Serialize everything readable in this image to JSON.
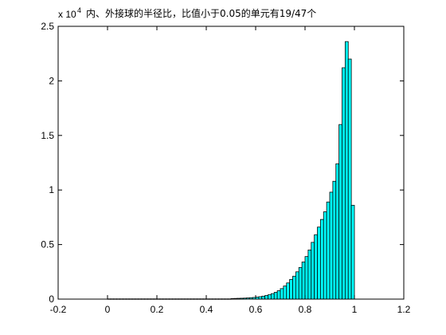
{
  "chart_data": {
    "type": "bar",
    "title": "内、外接球的半径比，比值小于0.05的单元有19/47个",
    "xlabel": "",
    "ylabel": "",
    "y_exponent_base": "x 10",
    "y_exponent_power": "4",
    "xlim": [
      -0.2,
      1.2
    ],
    "ylim": [
      0,
      2.5
    ],
    "xticks": [
      -0.2,
      0,
      0.2,
      0.4,
      0.6,
      0.8,
      1,
      1.2
    ],
    "xtick_labels": [
      "-0.2",
      "0",
      "0.2",
      "0.4",
      "0.6",
      "0.8",
      "1",
      "1.2"
    ],
    "yticks": [
      0,
      0.5,
      1,
      1.5,
      2,
      2.5
    ],
    "ytick_labels": [
      "0",
      "0.5",
      "1",
      "1.5",
      "2",
      "2.5"
    ],
    "grid": false,
    "bar_color": "#00ffff",
    "edge_color": "#000000",
    "bin_width": 0.0125,
    "bin_centers": [
      0.00625,
      0.01875,
      0.03125,
      0.04375,
      0.05625,
      0.06875,
      0.08125,
      0.09375,
      0.10625,
      0.11875,
      0.13125,
      0.14375,
      0.15625,
      0.16875,
      0.18125,
      0.19375,
      0.20625,
      0.21875,
      0.23125,
      0.24375,
      0.25625,
      0.26875,
      0.28125,
      0.29375,
      0.30625,
      0.31875,
      0.33125,
      0.34375,
      0.35625,
      0.36875,
      0.38125,
      0.39375,
      0.40625,
      0.41875,
      0.43125,
      0.44375,
      0.45625,
      0.46875,
      0.48125,
      0.49375,
      0.50625,
      0.51875,
      0.53125,
      0.54375,
      0.55625,
      0.56875,
      0.58125,
      0.59375,
      0.60625,
      0.61875,
      0.63125,
      0.64375,
      0.65625,
      0.66875,
      0.68125,
      0.69375,
      0.70625,
      0.71875,
      0.73125,
      0.74375,
      0.75625,
      0.76875,
      0.78125,
      0.79375,
      0.80625,
      0.81875,
      0.83125,
      0.84375,
      0.85625,
      0.86875,
      0.88125,
      0.89375,
      0.90625,
      0.91875,
      0.93125,
      0.94375,
      0.95625,
      0.96875,
      0.98125,
      0.99375
    ],
    "values": [
      0.002,
      0.002,
      0.002,
      0.002,
      0.002,
      0.002,
      0.002,
      0.002,
      0.002,
      0.002,
      0.002,
      0.002,
      0.002,
      0.002,
      0.002,
      0.002,
      0.002,
      0.002,
      0.002,
      0.002,
      0.002,
      0.002,
      0.002,
      0.002,
      0.002,
      0.002,
      0.002,
      0.002,
      0.002,
      0.002,
      0.002,
      0.002,
      0.002,
      0.002,
      0.002,
      0.002,
      0.002,
      0.002,
      0.002,
      0.002,
      0.005,
      0.006,
      0.007,
      0.008,
      0.009,
      0.011,
      0.013,
      0.015,
      0.018,
      0.022,
      0.027,
      0.033,
      0.04,
      0.05,
      0.062,
      0.077,
      0.096,
      0.12,
      0.148,
      0.18,
      0.21,
      0.25,
      0.29,
      0.34,
      0.39,
      0.45,
      0.52,
      0.59,
      0.66,
      0.73,
      0.8,
      0.89,
      0.98,
      1.08,
      1.24,
      1.6,
      2.12,
      2.36,
      2.2,
      0.86
    ]
  }
}
